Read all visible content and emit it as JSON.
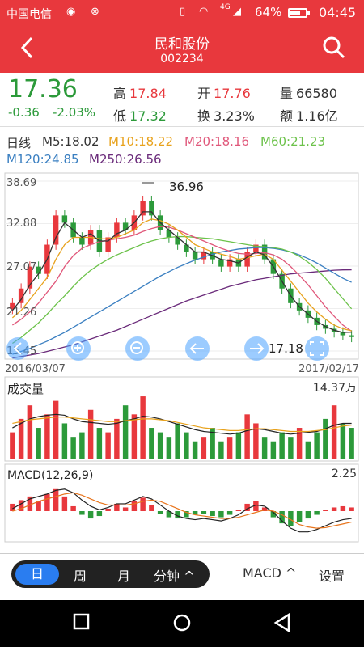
{
  "status_bar": {
    "carrier": "中国电信",
    "network": "4G",
    "battery": "64%",
    "battery_level": 0.64,
    "time": "04:45"
  },
  "nav": {
    "title": "民和股份",
    "code": "002234"
  },
  "quote": {
    "price": "17.36",
    "change": "-0.36",
    "change_pct": "-2.03%",
    "high_label": "高",
    "high": "17.84",
    "low_label": "低",
    "low": "17.32",
    "open_label": "开",
    "open": "17.76",
    "turnover_label": "换",
    "turnover": "3.23%",
    "volume_label": "量",
    "volume": "66580",
    "amount_label": "额",
    "amount": "1.16亿"
  },
  "ma_legend": {
    "period": "日线",
    "ma5": "M5:18.02",
    "ma10": "M10:18.22",
    "ma20": "M20:18.16",
    "ma60": "M60:21.23",
    "ma120": "M120:24.85",
    "ma250": "M250:26.56",
    "colors": {
      "ma5": "#333333",
      "ma10": "#e8a21c",
      "ma20": "#e0577a",
      "ma60": "#6cc24a",
      "ma120": "#3a7fc1",
      "ma250": "#6a2a7a"
    }
  },
  "chart_data": {
    "type": "candlestick",
    "y_ticks": [
      "38.69",
      "32.88",
      "27.07",
      "21.26",
      "15.45"
    ],
    "ylim": [
      15.45,
      38.69
    ],
    "high_annotation": "36.96",
    "low_annotation": "17.18",
    "start_date": "2016/03/07",
    "end_date": "2017/02/17",
    "close": [
      22,
      24,
      27,
      26,
      30,
      34,
      33,
      31,
      30,
      32,
      29,
      31,
      33,
      32,
      34,
      36,
      34,
      32,
      31,
      30,
      29,
      28,
      29,
      28,
      27,
      28,
      27,
      29,
      30,
      28,
      26,
      24,
      22,
      21,
      20,
      19,
      18.5,
      18,
      17.6,
      17.36
    ],
    "ma5": [
      21,
      22.5,
      24.5,
      26,
      28,
      31,
      33,
      32,
      31,
      31.5,
      30.5,
      30.5,
      31.5,
      32,
      33,
      34.5,
      34.5,
      33,
      32,
      31,
      30,
      29,
      29,
      28.5,
      28,
      27.8,
      27.5,
      28.3,
      29,
      28.6,
      27,
      25,
      23,
      21.5,
      20.5,
      19.5,
      18.8,
      18.3,
      18,
      18.02
    ],
    "ma10": [
      20,
      21,
      22.5,
      24,
      25.5,
      28,
      30,
      31,
      31,
      31,
      30.8,
      30.8,
      31,
      31.5,
      32,
      33,
      33.5,
      33.3,
      32.8,
      32,
      31,
      30,
      29.5,
      29,
      28.7,
      28.4,
      28,
      28.2,
      28.5,
      28.7,
      28,
      26.5,
      25,
      23.5,
      22,
      20.8,
      19.8,
      19,
      18.5,
      18.22
    ],
    "ma20": [
      19,
      19.8,
      20.8,
      22,
      23.5,
      25,
      27,
      28.5,
      29.5,
      30,
      30.4,
      30.6,
      30.8,
      31,
      31.3,
      31.8,
      32.2,
      32.5,
      32.4,
      32,
      31.5,
      31,
      30.5,
      30,
      29.5,
      29.1,
      28.8,
      28.7,
      28.8,
      28.9,
      28.6,
      28,
      27,
      25.8,
      24.5,
      23,
      21.5,
      20.2,
      19,
      18.16
    ],
    "ma60": [
      16.5,
      17.3,
      18.3,
      19.3,
      20.5,
      21.8,
      23,
      24.3,
      25.5,
      26.5,
      27.3,
      28,
      28.6,
      29.1,
      29.6,
      30.1,
      30.5,
      30.8,
      31,
      31.1,
      31.1,
      31,
      30.9,
      30.8,
      30.6,
      30.4,
      30.2,
      30,
      29.8,
      29.7,
      29.6,
      29.4,
      29,
      28.4,
      27.6,
      26.6,
      25.4,
      24,
      22.6,
      21.23
    ],
    "ma120": [
      15,
      15.4,
      15.8,
      16.3,
      16.8,
      17.4,
      18,
      18.7,
      19.4,
      20.1,
      20.8,
      21.5,
      22.2,
      22.9,
      23.6,
      24.3,
      25,
      25.7,
      26.3,
      26.9,
      27.4,
      27.9,
      28.3,
      28.7,
      29,
      29.2,
      29.4,
      29.5,
      29.6,
      29.6,
      29.5,
      29.3,
      29,
      28.6,
      28.1,
      27.5,
      26.8,
      26.1,
      25.4,
      24.85
    ],
    "ma250": [
      14.5,
      14.7,
      14.9,
      15.1,
      15.4,
      15.7,
      16,
      16.3,
      16.7,
      17.1,
      17.5,
      17.9,
      18.3,
      18.8,
      19.3,
      19.8,
      20.3,
      20.8,
      21.3,
      21.8,
      22.3,
      22.7,
      23.1,
      23.5,
      23.9,
      24.3,
      24.6,
      24.9,
      25.2,
      25.4,
      25.6,
      25.8,
      26,
      26.1,
      26.2,
      26.3,
      26.4,
      26.5,
      26.55,
      26.56
    ]
  },
  "volume_panel": {
    "title": "成交量",
    "max_label": "14.37万",
    "max": 14.37,
    "bars": [
      6,
      9,
      12,
      7,
      10,
      13,
      8,
      5,
      6,
      11,
      7,
      6,
      9,
      12,
      10,
      14,
      7,
      6,
      5,
      8,
      6,
      4,
      5,
      7,
      4,
      5,
      6,
      10,
      8,
      5,
      4,
      6,
      5,
      7,
      4,
      6,
      9,
      12,
      8,
      7
    ],
    "up": [
      true,
      true,
      true,
      false,
      true,
      true,
      false,
      false,
      false,
      true,
      false,
      true,
      true,
      false,
      true,
      true,
      false,
      false,
      false,
      false,
      false,
      false,
      true,
      false,
      false,
      true,
      false,
      true,
      true,
      false,
      false,
      false,
      false,
      true,
      false,
      false,
      false,
      true,
      false,
      false
    ],
    "ma_a": [
      7,
      8,
      9,
      9.5,
      9.8,
      10,
      9.8,
      9,
      8.4,
      8.2,
      8,
      7.8,
      8,
      8.6,
      9,
      9.6,
      9.4,
      9,
      8.4,
      7.8,
      7.2,
      6.6,
      6.2,
      6,
      5.8,
      5.6,
      5.8,
      6.4,
      6.8,
      6.6,
      6.2,
      5.8,
      5.6,
      5.8,
      6,
      6.2,
      6.8,
      7.6,
      8,
      8
    ],
    "ma_b": [
      8,
      8.4,
      8.8,
      9,
      9.2,
      9.4,
      9.4,
      9.2,
      9,
      8.8,
      8.6,
      8.4,
      8.4,
      8.6,
      8.8,
      9,
      9,
      8.8,
      8.6,
      8.2,
      7.8,
      7.4,
      7,
      6.8,
      6.6,
      6.4,
      6.4,
      6.6,
      6.8,
      6.8,
      6.6,
      6.4,
      6.2,
      6.2,
      6.2,
      6.4,
      6.6,
      7,
      7.4,
      7.6
    ]
  },
  "macd_panel": {
    "title": "MACD(12,26,9)",
    "max_label": "2.25",
    "max": 2.25,
    "hist": [
      0.6,
      0.9,
      1.2,
      0.8,
      1.4,
      1.8,
      1.2,
      0.4,
      -0.3,
      -0.6,
      -0.4,
      0.2,
      0.6,
      0.3,
      0.8,
      1.1,
      0.5,
      -0.2,
      -0.5,
      -0.6,
      -0.5,
      -0.3,
      -0.2,
      -0.4,
      -0.5,
      -0.3,
      0.1,
      0.6,
      0.8,
      0.3,
      -0.5,
      -1,
      -1.2,
      -0.9,
      -0.6,
      -0.3,
      0.1,
      0.3,
      0.4,
      0.3
    ],
    "dif": [
      0.2,
      0.6,
      1,
      1.2,
      1.4,
      1.7,
      1.8,
      1.5,
      0.9,
      0.4,
      0.1,
      0.3,
      0.6,
      0.6,
      0.9,
      1.2,
      1,
      0.5,
      0,
      -0.4,
      -0.6,
      -0.7,
      -0.6,
      -0.7,
      -0.8,
      -0.6,
      -0.3,
      0.2,
      0.5,
      0.4,
      -0.1,
      -0.8,
      -1.4,
      -1.7,
      -1.7,
      -1.5,
      -1.2,
      -0.9,
      -0.7,
      -0.6
    ],
    "dea": [
      0,
      0.2,
      0.5,
      0.8,
      1,
      1.2,
      1.4,
      1.5,
      1.3,
      1,
      0.7,
      0.5,
      0.5,
      0.5,
      0.6,
      0.8,
      0.9,
      0.8,
      0.5,
      0.2,
      -0.1,
      -0.3,
      -0.4,
      -0.5,
      -0.6,
      -0.6,
      -0.5,
      -0.3,
      -0.1,
      0.1,
      0,
      -0.3,
      -0.7,
      -1.1,
      -1.3,
      -1.4,
      -1.35,
      -1.2,
      -1.05,
      -0.9
    ]
  },
  "toolbar": {
    "periods": [
      "日",
      "周",
      "月",
      "分钟 ^"
    ],
    "indicator": "MACD ^",
    "settings": "设置"
  }
}
